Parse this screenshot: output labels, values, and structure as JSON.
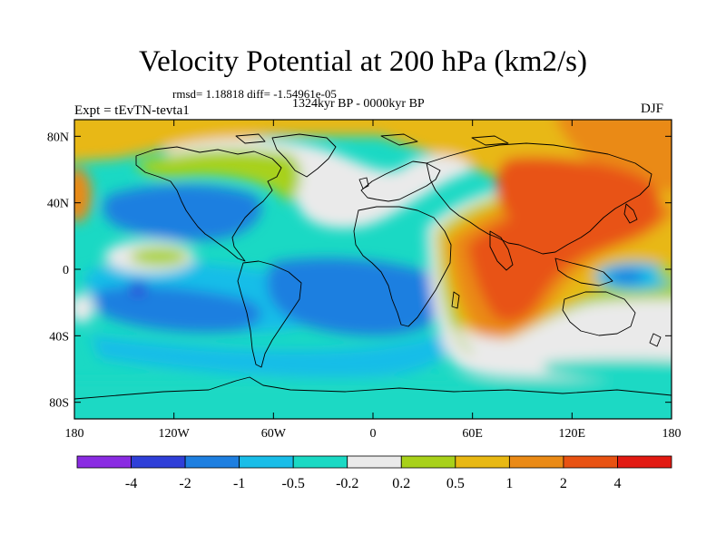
{
  "title": "Velocity Potential at 200 hPa (km2/s)",
  "stats": "rmsd= 1.18818 diff= -1.54961e-05",
  "subtitle": "1324kyr BP - 0000kyr BP",
  "experiment": "Expt = tEvTN-tevta1",
  "season": "DJF",
  "map": {
    "lat_labels": [
      {
        "value": 80,
        "label": "80N"
      },
      {
        "value": 40,
        "label": "40N"
      },
      {
        "value": 0,
        "label": "0"
      },
      {
        "value": -40,
        "label": "40S"
      },
      {
        "value": -80,
        "label": "80S"
      }
    ],
    "lon_labels": [
      {
        "value": -180,
        "label": "180"
      },
      {
        "value": -120,
        "label": "120W"
      },
      {
        "value": -60,
        "label": "60W"
      },
      {
        "value": 0,
        "label": "0"
      },
      {
        "value": 60,
        "label": "60E"
      },
      {
        "value": 120,
        "label": "120E"
      },
      {
        "value": 180,
        "label": "180"
      }
    ],
    "lon_range": [
      -180,
      180
    ],
    "lat_range": [
      -90,
      90
    ]
  },
  "colorbar": {
    "colors": [
      "#8a2be2",
      "#2f3fd8",
      "#1e7fe0",
      "#19bde8",
      "#1ad9c4",
      "#eaeaea",
      "#a8d11a",
      "#e8b813",
      "#ea8a16",
      "#e85212",
      "#e21a12"
    ],
    "labels": [
      "-4",
      "-2",
      "-1",
      "-0.5",
      "-0.2",
      "0.2",
      "0.5",
      "1",
      "2",
      "4"
    ]
  },
  "legend_colors": {
    "below_-4": "#8a2be2",
    "-4_to_-2": "#2f3fd8",
    "-2_to_-1": "#1e7fe0",
    "-1_to_-0.5": "#19bde8",
    "-0.5_to_-0.2": "#1ad9c4",
    "-0.2_to_0.2": "#eaeaea",
    "0.2_to_0.5": "#a8d11a",
    "0.5_to_1": "#e8b813",
    "1_to_2": "#ea8a16",
    "2_to_4": "#e85212"
  }
}
